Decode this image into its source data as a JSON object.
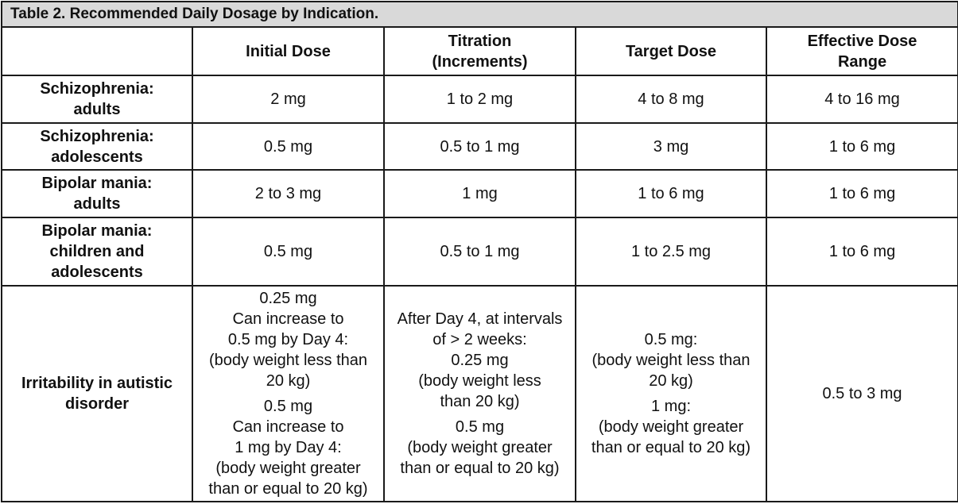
{
  "table": {
    "caption": "Table 2. Recommended Daily Dosage by Indication.",
    "columns": [
      "",
      "Initial Dose",
      "Titration\n(Increments)",
      "Target Dose",
      "Effective Dose\nRange"
    ],
    "rows": [
      {
        "label": "Schizophrenia:\nadults",
        "initial": "2 mg",
        "titration": "1 to 2 mg",
        "target": "4 to 8 mg",
        "range": "4 to 16 mg"
      },
      {
        "label": "Schizophrenia:\nadolescents",
        "initial": "0.5 mg",
        "titration": "0.5 to 1 mg",
        "target": "3 mg",
        "range": "1 to 6 mg"
      },
      {
        "label": "Bipolar mania:\nadults",
        "initial": "2 to 3 mg",
        "titration": "1 mg",
        "target": "1 to 6 mg",
        "range": "1 to 6 mg"
      },
      {
        "label": "Bipolar mania:\nchildren and\nadolescents",
        "initial": "0.5 mg",
        "titration": "0.5 to 1 mg",
        "target": "1 to 2.5 mg",
        "range": "1 to 6 mg"
      }
    ],
    "autism": {
      "label": "Irritability in autistic\ndisorder",
      "initial_a": "0.25 mg\nCan increase to\n0.5 mg by Day 4:\n(body weight less than\n20 kg)",
      "initial_b": "0.5 mg\nCan increase to\n1 mg by Day 4:\n(body weight greater\nthan or equal to 20 kg)",
      "titration_a": "After Day 4, at intervals\nof > 2 weeks:\n0.25 mg\n(body weight less\nthan 20 kg)",
      "titration_b": "0.5 mg\n(body weight greater\nthan or equal to 20 kg)",
      "target_a": "0.5 mg:\n(body weight less than\n20 kg)",
      "target_b": "1 mg:\n(body weight greater\nthan or equal to 20 kg)",
      "range": "0.5 to 3 mg"
    }
  }
}
